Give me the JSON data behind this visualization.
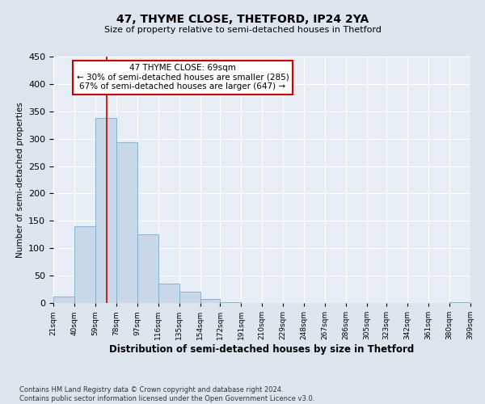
{
  "title": "47, THYME CLOSE, THETFORD, IP24 2YA",
  "subtitle": "Size of property relative to semi-detached houses in Thetford",
  "xlabel": "Distribution of semi-detached houses by size in Thetford",
  "ylabel": "Number of semi-detached properties",
  "bin_labels": [
    "21sqm",
    "40sqm",
    "59sqm",
    "78sqm",
    "97sqm",
    "116sqm",
    "135sqm",
    "154sqm",
    "172sqm",
    "191sqm",
    "210sqm",
    "229sqm",
    "248sqm",
    "267sqm",
    "286sqm",
    "305sqm",
    "323sqm",
    "342sqm",
    "361sqm",
    "380sqm",
    "399sqm"
  ],
  "bin_edges": [
    21,
    40,
    59,
    78,
    97,
    116,
    135,
    154,
    172,
    191,
    210,
    229,
    248,
    267,
    286,
    305,
    323,
    342,
    361,
    380,
    399
  ],
  "bar_heights": [
    12,
    140,
    338,
    293,
    125,
    35,
    20,
    7,
    2,
    0,
    0,
    0,
    0,
    0,
    0,
    0,
    0,
    0,
    0,
    2
  ],
  "bar_color": "#c8d8e8",
  "bar_edge_color": "#7aacc8",
  "property_size": 69,
  "property_line_color": "#cc0000",
  "annotation_title": "47 THYME CLOSE: 69sqm",
  "annotation_line1": "← 30% of semi-detached houses are smaller (285)",
  "annotation_line2": "67% of semi-detached houses are larger (647) →",
  "annotation_box_color": "#ffffff",
  "annotation_box_edge": "#cc0000",
  "ylim": [
    0,
    450
  ],
  "yticks": [
    0,
    50,
    100,
    150,
    200,
    250,
    300,
    350,
    400,
    450
  ],
  "footer_line1": "Contains HM Land Registry data © Crown copyright and database right 2024.",
  "footer_line2": "Contains public sector information licensed under the Open Government Licence v3.0.",
  "background_color": "#dde5ef",
  "plot_background_color": "#e8eef5"
}
